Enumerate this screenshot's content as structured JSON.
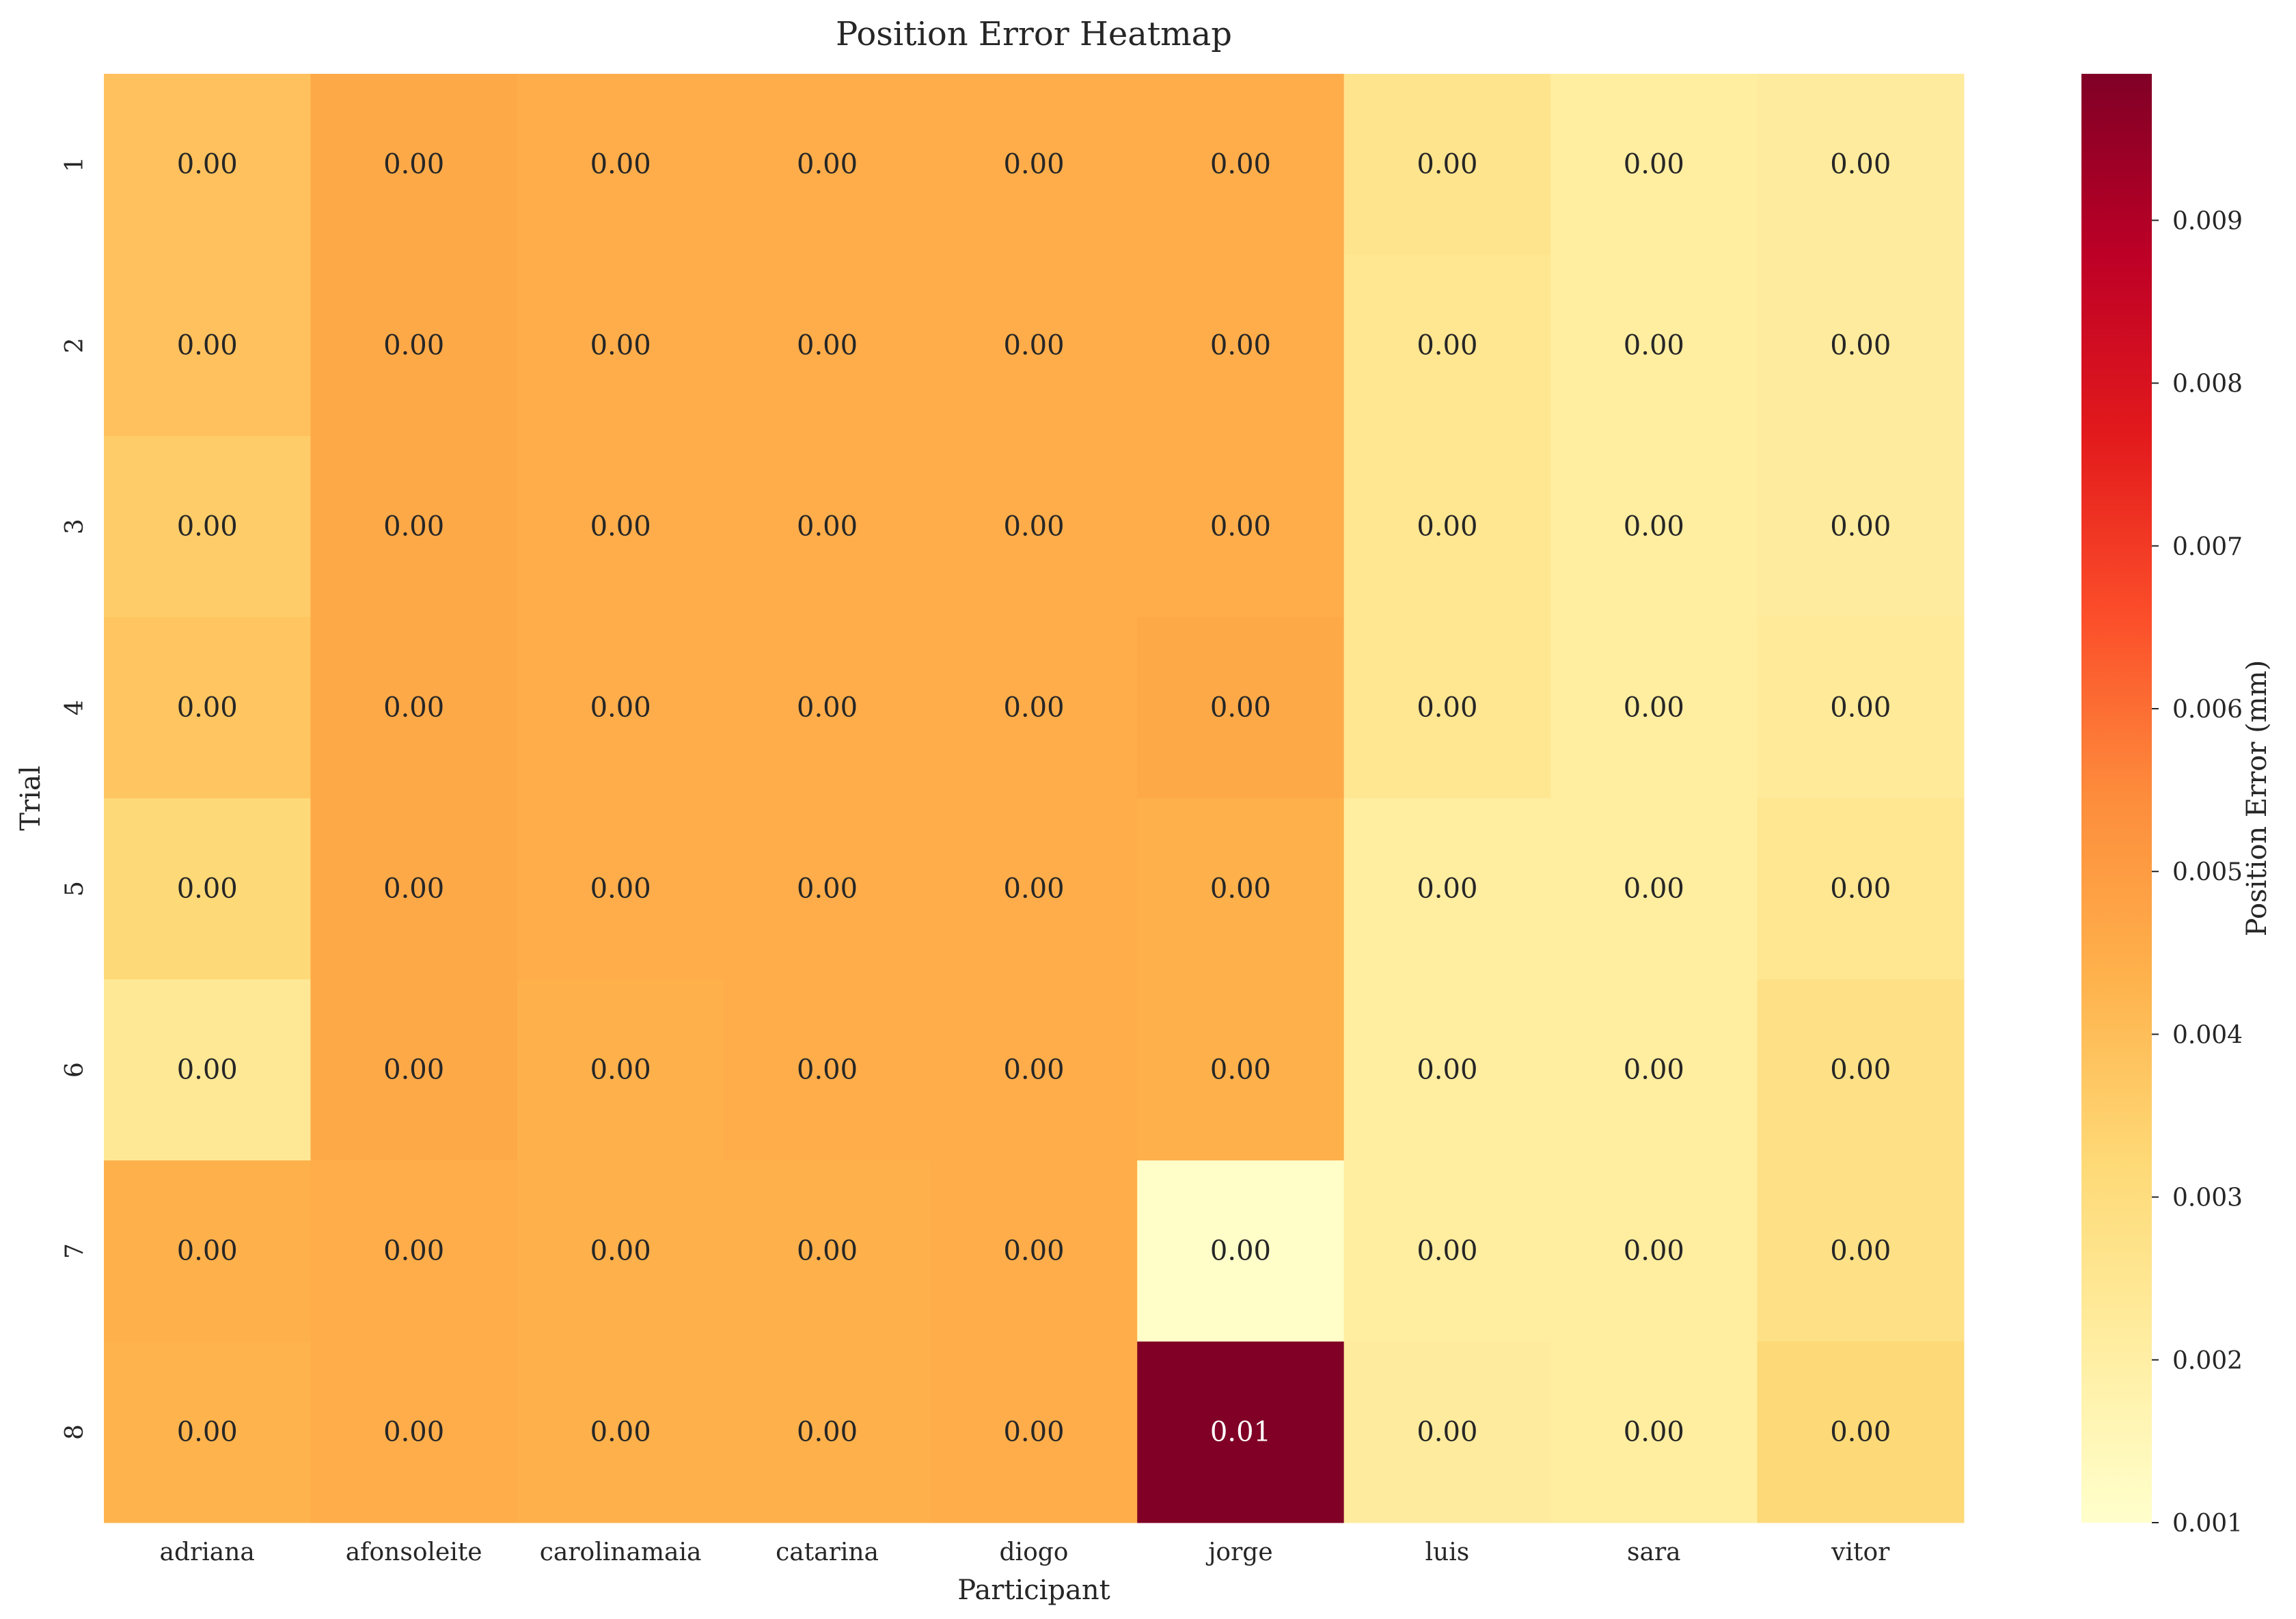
{
  "chart_data": {
    "type": "heatmap",
    "title": "Position Error Heatmap",
    "xlabel": "Participant",
    "ylabel": "Trial",
    "x_categories": [
      "adriana",
      "afonsoleite",
      "carolinamaia",
      "catarina",
      "diogo",
      "jorge",
      "luis",
      "sara",
      "vitor"
    ],
    "y_categories": [
      "1",
      "2",
      "3",
      "4",
      "5",
      "6",
      "7",
      "8"
    ],
    "values": [
      [
        0.0039,
        0.0046,
        0.0045,
        0.0045,
        0.0045,
        0.0045,
        0.0026,
        0.0021,
        0.0022
      ],
      [
        0.0039,
        0.0046,
        0.0045,
        0.0045,
        0.0045,
        0.0045,
        0.0025,
        0.0021,
        0.0022
      ],
      [
        0.0036,
        0.0046,
        0.0045,
        0.0045,
        0.0045,
        0.0045,
        0.0025,
        0.0021,
        0.0022
      ],
      [
        0.0038,
        0.0046,
        0.0045,
        0.0045,
        0.0045,
        0.0046,
        0.0025,
        0.0021,
        0.0023
      ],
      [
        0.0032,
        0.0046,
        0.0045,
        0.0045,
        0.0045,
        0.0044,
        0.0021,
        0.0021,
        0.0025
      ],
      [
        0.0024,
        0.0046,
        0.0044,
        0.0045,
        0.0045,
        0.0044,
        0.0021,
        0.0021,
        0.0028
      ],
      [
        0.0044,
        0.0045,
        0.0044,
        0.0044,
        0.0045,
        0.0011,
        0.0021,
        0.0021,
        0.0028
      ],
      [
        0.0043,
        0.0045,
        0.0044,
        0.0044,
        0.0045,
        0.0099,
        0.0022,
        0.0021,
        0.0032
      ]
    ],
    "annotations": [
      [
        "0.00",
        "0.00",
        "0.00",
        "0.00",
        "0.00",
        "0.00",
        "0.00",
        "0.00",
        "0.00"
      ],
      [
        "0.00",
        "0.00",
        "0.00",
        "0.00",
        "0.00",
        "0.00",
        "0.00",
        "0.00",
        "0.00"
      ],
      [
        "0.00",
        "0.00",
        "0.00",
        "0.00",
        "0.00",
        "0.00",
        "0.00",
        "0.00",
        "0.00"
      ],
      [
        "0.00",
        "0.00",
        "0.00",
        "0.00",
        "0.00",
        "0.00",
        "0.00",
        "0.00",
        "0.00"
      ],
      [
        "0.00",
        "0.00",
        "0.00",
        "0.00",
        "0.00",
        "0.00",
        "0.00",
        "0.00",
        "0.00"
      ],
      [
        "0.00",
        "0.00",
        "0.00",
        "0.00",
        "0.00",
        "0.00",
        "0.00",
        "0.00",
        "0.00"
      ],
      [
        "0.00",
        "0.00",
        "0.00",
        "0.00",
        "0.00",
        "0.00",
        "0.00",
        "0.00",
        "0.00"
      ],
      [
        "0.00",
        "0.00",
        "0.00",
        "0.00",
        "0.00",
        "0.01",
        "0.00",
        "0.00",
        "0.00"
      ]
    ],
    "colorbar": {
      "label": "Position Error (mm)",
      "min": 0.001,
      "max": 0.0099,
      "ticks": [
        0.001,
        0.002,
        0.003,
        0.004,
        0.005,
        0.006,
        0.007,
        0.008,
        0.009
      ],
      "tick_labels": [
        "0.001",
        "0.002",
        "0.003",
        "0.004",
        "0.005",
        "0.006",
        "0.007",
        "0.008",
        "0.009"
      ],
      "colormap": "YlOrRd",
      "colormap_stops": [
        "#ffffcc",
        "#ffeda0",
        "#fed976",
        "#feb24c",
        "#fd8d3c",
        "#fc4e2a",
        "#e31a1c",
        "#bd0026",
        "#800026"
      ]
    },
    "grid": false
  }
}
